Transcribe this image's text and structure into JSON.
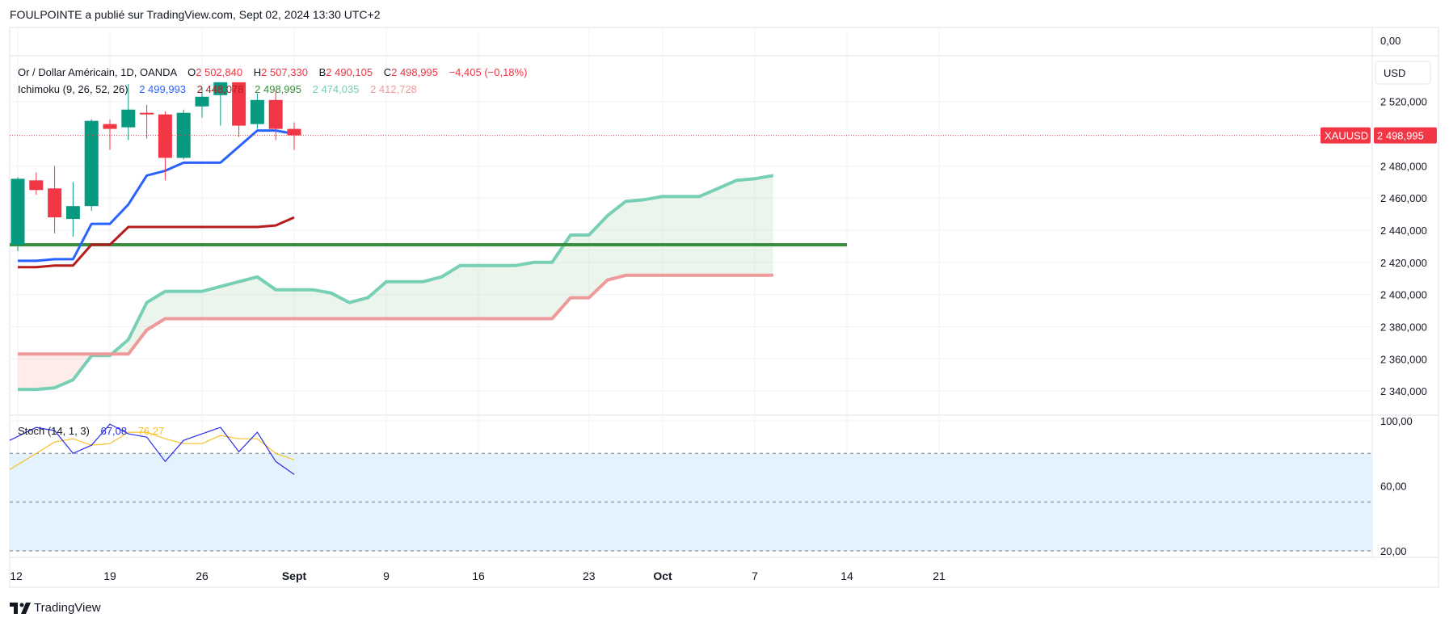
{
  "header": {
    "publisher": "FOULPOINTE a publié sur TradingView.com, Sept 02, 2024 13:30 UTC+2"
  },
  "footer": {
    "brand": "TradingView"
  },
  "colors": {
    "bull": "#089981",
    "bear": "#f23645",
    "tenkan": "#2962ff",
    "kijun": "#b71c1c",
    "chikou": "#388e3c",
    "spanA": "#77cfb5",
    "spanB": "#ef9a9a",
    "stochK": "#2a2ee8",
    "stochD": "#f7c123",
    "stochBand": "#e3f2fd"
  },
  "chart_data": {
    "type": "candlestick",
    "legend": {
      "symbol": "Or / Dollar Américain, 1D, OANDA",
      "o_label": "O",
      "o": "2 502,840",
      "h_label": "H",
      "h": "2 507,330",
      "b_label": "B",
      "b": "2 490,105",
      "c_label": "C",
      "c": "2 498,995",
      "change": "−4,405 (−0,18%)",
      "ichimoku_label": "Ichimoku (9, 26, 52, 26)",
      "ichimoku_values": [
        "2 499,993",
        "2 448,078",
        "2 498,995",
        "2 474,035",
        "2 412,728"
      ],
      "stoch_label": "Stoch (14, 1, 3)",
      "stoch_values": [
        "67,08",
        "76,27"
      ]
    },
    "price_axis": {
      "ticks": [
        2520,
        2480,
        2460,
        2440,
        2420,
        2400,
        2380,
        2360,
        2340
      ],
      "tick_labels": [
        "2 520,000",
        "2 480,000",
        "2 460,000",
        "2 440,000",
        "2 420,000",
        "2 400,000",
        "2 380,000",
        "2 360,000",
        "2 340,000"
      ],
      "top_label": "0,00",
      "currency": "USD",
      "ylim": [
        2326,
        2548
      ]
    },
    "last_price": {
      "symbol": "XAUUSD",
      "value": 2498.995,
      "label": "2 498,995"
    },
    "stoch_axis": {
      "ticks": [
        100,
        60,
        20
      ],
      "tick_labels": [
        "100,00",
        "60,00",
        "20,00"
      ],
      "bands": [
        80,
        50,
        20
      ],
      "ylim": [
        17,
        103
      ]
    },
    "x_axis": {
      "tick_idx": [
        0,
        5,
        10,
        15,
        20,
        25,
        31,
        35,
        40,
        45,
        50
      ],
      "tick_labels": [
        "12",
        "19",
        "26",
        "Sept",
        "9",
        "16",
        "23",
        "Oct",
        "7",
        "14",
        "21"
      ]
    },
    "candles": [
      {
        "o": 2431,
        "h": 2473,
        "l": 2427,
        "c": 2472
      },
      {
        "o": 2471,
        "h": 2476,
        "l": 2462,
        "c": 2465
      },
      {
        "o": 2466,
        "h": 2480,
        "l": 2438,
        "c": 2448
      },
      {
        "o": 2447,
        "h": 2470,
        "l": 2436,
        "c": 2455
      },
      {
        "o": 2455,
        "h": 2509,
        "l": 2452,
        "c": 2508
      },
      {
        "o": 2506,
        "h": 2509,
        "l": 2490,
        "c": 2503
      },
      {
        "o": 2504,
        "h": 2531,
        "l": 2496,
        "c": 2515
      },
      {
        "o": 2513,
        "h": 2518,
        "l": 2497,
        "c": 2512
      },
      {
        "o": 2512,
        "h": 2514,
        "l": 2471,
        "c": 2485
      },
      {
        "o": 2485,
        "h": 2515,
        "l": 2484,
        "c": 2513
      },
      {
        "o": 2517,
        "h": 2529,
        "l": 2510,
        "c": 2523
      },
      {
        "o": 2524,
        "h": 2532,
        "l": 2505,
        "c": 2532
      },
      {
        "o": 2532,
        "h": 2532,
        "l": 2498,
        "c": 2505
      },
      {
        "o": 2506,
        "h": 2525,
        "l": 2503,
        "c": 2521
      },
      {
        "o": 2521,
        "h": 2527,
        "l": 2496,
        "c": 2503
      },
      {
        "o": 2503,
        "h": 2507,
        "l": 2490,
        "c": 2499
      }
    ],
    "tenkan": [
      2421,
      2421,
      2422,
      2422,
      2444,
      2444,
      2456,
      2474,
      2477,
      2482,
      2482,
      2482,
      2492,
      2502,
      2502,
      2500
    ],
    "kijun": [
      2417,
      2417,
      2418,
      2418,
      2431,
      2431,
      2442,
      2442,
      2442,
      2442,
      2442,
      2442,
      2442,
      2442,
      2443,
      2448
    ],
    "chikou": {
      "value": 2431,
      "from": 0,
      "to": 45
    },
    "span_a": [
      2341,
      2341,
      2342,
      2347,
      2362,
      2362,
      2372,
      2395,
      2402,
      2402,
      2402,
      2405,
      2408,
      2411,
      2403,
      2403,
      2403,
      2401,
      2395,
      2398,
      2408,
      2408,
      2408,
      2411,
      2418,
      2418,
      2418,
      2418,
      2420,
      2420,
      2437,
      2437,
      2449,
      2458,
      2459,
      2461,
      2461,
      2461,
      2466,
      2471,
      2472,
      2474
    ],
    "span_b": [
      2363,
      2363,
      2363,
      2363,
      2363,
      2363,
      2363,
      2378,
      2385,
      2385,
      2385,
      2385,
      2385,
      2385,
      2385,
      2385,
      2385,
      2385,
      2385,
      2385,
      2385,
      2385,
      2385,
      2385,
      2385,
      2385,
      2385,
      2385,
      2385,
      2385,
      2398,
      2398,
      2409,
      2412,
      2412,
      2412,
      2412,
      2412,
      2412,
      2412,
      2412,
      2412
    ],
    "stoch_k": [
      88,
      96,
      94,
      80,
      85,
      98,
      92,
      90,
      75,
      88,
      92,
      96,
      81,
      93,
      75,
      67
    ],
    "stoch_d": [
      70,
      80,
      87,
      89,
      85,
      86,
      93,
      93,
      89,
      86,
      86,
      91,
      89,
      89,
      80,
      76
    ]
  }
}
